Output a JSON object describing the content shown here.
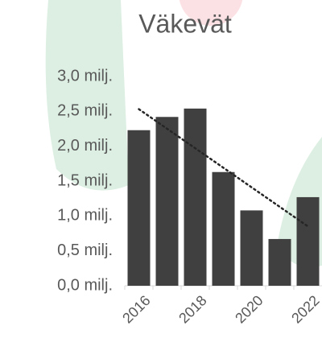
{
  "chart_data": {
    "type": "bar",
    "title": "Väkevät",
    "categories": [
      "2016",
      null,
      "2018",
      null,
      "2020",
      null,
      "2022"
    ],
    "values": [
      2.23,
      2.42,
      2.54,
      1.63,
      1.08,
      0.67,
      1.27
    ],
    "color": "#404040",
    "ylim": [
      0,
      3
    ],
    "yticks": [
      {
        "value": 0,
        "label": "0,0 milj."
      },
      {
        "value": 0.5,
        "label": "0,5 milj."
      },
      {
        "value": 1,
        "label": "1,0 milj."
      },
      {
        "value": 1.5,
        "label": "1,5 milj."
      },
      {
        "value": 2,
        "label": "2,0 milj."
      },
      {
        "value": 2.5,
        "label": "2,5 milj."
      },
      {
        "value": 3,
        "label": "3,0 milj."
      }
    ],
    "trendline": true
  }
}
